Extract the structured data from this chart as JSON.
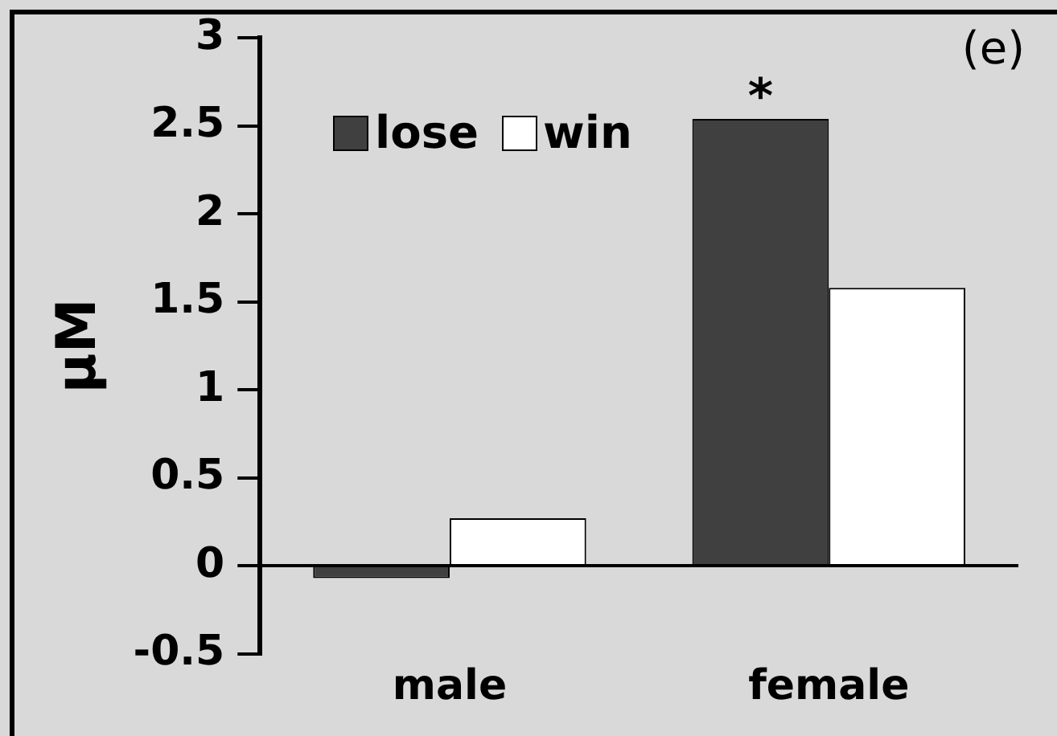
{
  "chart_data": {
    "type": "bar",
    "ylabel": "μM",
    "categories": [
      "male",
      "female"
    ],
    "series": [
      {
        "name": "lose",
        "color": "#404040",
        "values": [
          -0.07,
          2.54
        ]
      },
      {
        "name": "win",
        "color": "#ffffff",
        "values": [
          0.27,
          1.58
        ]
      }
    ],
    "ylim": [
      -0.5,
      3
    ],
    "yticks": [
      -0.5,
      0,
      0.5,
      1,
      1.5,
      2,
      2.5,
      3
    ],
    "grid": false,
    "legend": "top left",
    "annotations": [
      "(e)",
      {
        "text": "*",
        "x": "female",
        "y": 2.54
      }
    ]
  }
}
